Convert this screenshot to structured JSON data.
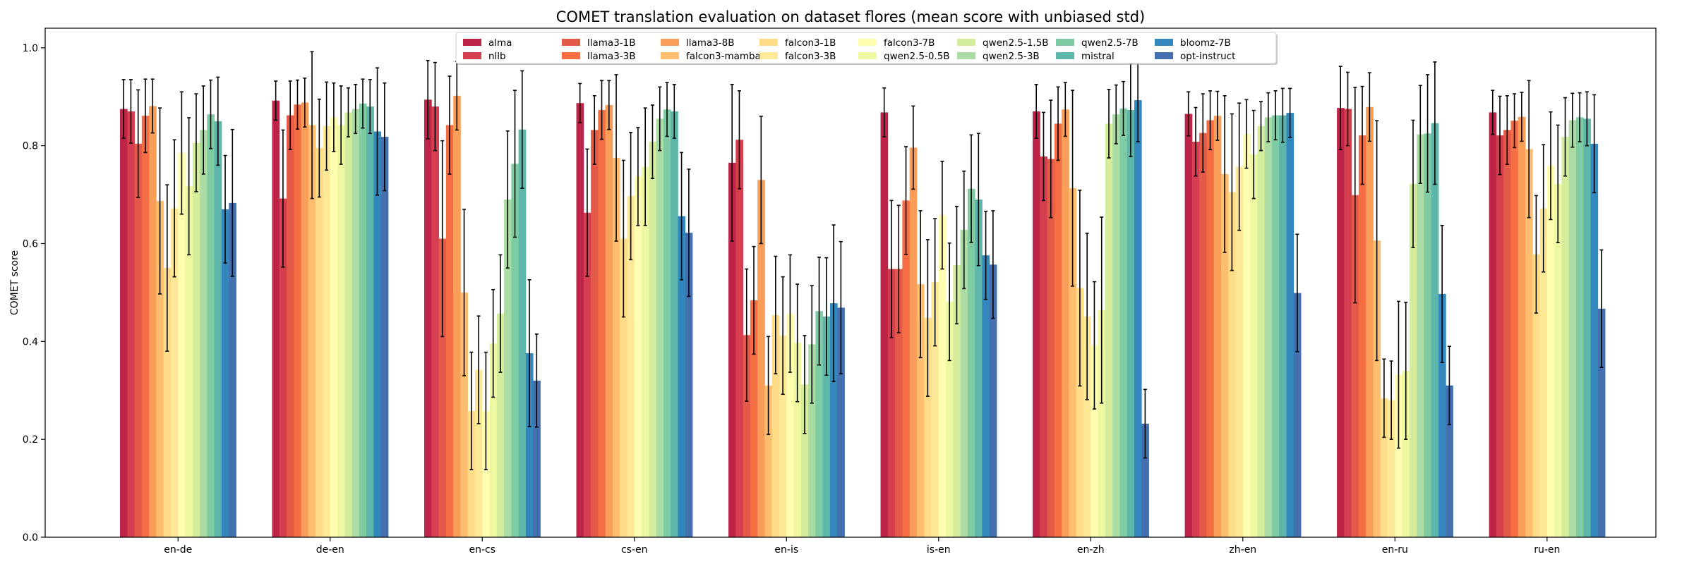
{
  "chart_data": {
    "type": "bar",
    "title": "COMET translation evaluation on dataset flores (mean score with unbiased std)",
    "xlabel": "",
    "ylabel": "COMET score",
    "ylim": [
      0,
      1.04
    ],
    "yticks": [
      "0.0",
      "0.2",
      "0.4",
      "0.6",
      "0.8",
      "1.0"
    ],
    "grid": false,
    "legend": {
      "placement": "top-center",
      "columns": 8
    },
    "error_bars": true,
    "categories": [
      "en-de",
      "de-en",
      "en-cs",
      "cs-en",
      "en-is",
      "is-en",
      "en-zh",
      "zh-en",
      "en-ru",
      "ru-en"
    ],
    "series": [
      {
        "name": "alma",
        "color": "#be2447",
        "values": [
          0.875,
          0.892,
          0.894,
          0.887,
          0.765,
          0.868,
          0.87,
          0.865,
          0.877,
          0.868
        ],
        "std": [
          0.06,
          0.04,
          0.08,
          0.04,
          0.16,
          0.05,
          0.055,
          0.045,
          0.085,
          0.045
        ]
      },
      {
        "name": "nllb",
        "color": "#d53e4f",
        "values": [
          0.87,
          0.692,
          0.88,
          0.663,
          0.812,
          0.548,
          0.778,
          0.808,
          0.875,
          0.821
        ],
        "std": [
          0.065,
          0.14,
          0.09,
          0.13,
          0.1,
          0.14,
          0.09,
          0.07,
          0.075,
          0.08
        ]
      },
      {
        "name": "llama3-1B",
        "color": "#e45a49",
        "values": [
          0.804,
          0.862,
          0.61,
          0.832,
          0.413,
          0.548,
          0.773,
          0.826,
          0.699,
          0.832
        ],
        "std": [
          0.11,
          0.07,
          0.2,
          0.07,
          0.135,
          0.13,
          0.12,
          0.08,
          0.22,
          0.07
        ]
      },
      {
        "name": "llama3-3B",
        "color": "#f46d43",
        "values": [
          0.861,
          0.884,
          0.842,
          0.873,
          0.484,
          0.688,
          0.845,
          0.852,
          0.821,
          0.851
        ],
        "std": [
          0.075,
          0.05,
          0.1,
          0.06,
          0.11,
          0.11,
          0.075,
          0.06,
          0.1,
          0.055
        ]
      },
      {
        "name": "llama3-8B",
        "color": "#f99e59",
        "values": [
          0.881,
          0.888,
          0.902,
          0.883,
          0.73,
          0.796,
          0.874,
          0.861,
          0.879,
          0.859
        ],
        "std": [
          0.055,
          0.05,
          0.07,
          0.05,
          0.13,
          0.085,
          0.055,
          0.05,
          0.07,
          0.05
        ]
      },
      {
        "name": "falcon3-mamba",
        "color": "#fdbf6f",
        "values": [
          0.687,
          0.842,
          0.5,
          0.775,
          0.31,
          0.517,
          0.713,
          0.742,
          0.606,
          0.793
        ],
        "std": [
          0.19,
          0.15,
          0.17,
          0.17,
          0.1,
          0.15,
          0.2,
          0.16,
          0.245,
          0.14
        ]
      },
      {
        "name": "falcon3-1B",
        "color": "#fedc88",
        "values": [
          0.55,
          0.795,
          0.258,
          0.61,
          0.454,
          0.448,
          0.509,
          0.705,
          0.284,
          0.578
        ],
        "std": [
          0.17,
          0.1,
          0.12,
          0.16,
          0.12,
          0.16,
          0.2,
          0.16,
          0.08,
          0.12
        ]
      },
      {
        "name": "falcon3-3B",
        "color": "#fee999",
        "values": [
          0.672,
          0.84,
          0.342,
          0.697,
          0.412,
          0.521,
          0.451,
          0.757,
          0.28,
          0.672
        ],
        "std": [
          0.14,
          0.09,
          0.11,
          0.13,
          0.12,
          0.13,
          0.17,
          0.13,
          0.08,
          0.13
        ]
      },
      {
        "name": "falcon3-7B",
        "color": "#fefdb0",
        "values": [
          0.785,
          0.858,
          0.258,
          0.737,
          0.457,
          0.658,
          0.392,
          0.824,
          0.332,
          0.759
        ],
        "std": [
          0.125,
          0.07,
          0.12,
          0.1,
          0.12,
          0.11,
          0.13,
          0.07,
          0.15,
          0.11
        ]
      },
      {
        "name": "qwen2.5-0.5B",
        "color": "#eef8a0",
        "values": [
          0.717,
          0.842,
          0.396,
          0.757,
          0.397,
          0.481,
          0.464,
          0.782,
          0.34,
          0.722
        ],
        "std": [
          0.14,
          0.08,
          0.11,
          0.12,
          0.12,
          0.12,
          0.19,
          0.09,
          0.14,
          0.12
        ]
      },
      {
        "name": "qwen2.5-1.5B",
        "color": "#d4ed9c",
        "values": [
          0.806,
          0.868,
          0.457,
          0.808,
          0.312,
          0.556,
          0.845,
          0.84,
          0.722,
          0.818
        ],
        "std": [
          0.1,
          0.05,
          0.12,
          0.075,
          0.1,
          0.12,
          0.07,
          0.05,
          0.13,
          0.08
        ]
      },
      {
        "name": "qwen2.5-3B",
        "color": "#aadca4",
        "values": [
          0.832,
          0.875,
          0.69,
          0.855,
          0.394,
          0.628,
          0.864,
          0.858,
          0.823,
          0.852
        ],
        "std": [
          0.09,
          0.05,
          0.14,
          0.065,
          0.12,
          0.12,
          0.06,
          0.05,
          0.1,
          0.055
        ]
      },
      {
        "name": "qwen2.5-7B",
        "color": "#7fcba4",
        "values": [
          0.864,
          0.886,
          0.763,
          0.874,
          0.462,
          0.712,
          0.876,
          0.862,
          0.825,
          0.858
        ],
        "std": [
          0.07,
          0.05,
          0.15,
          0.055,
          0.11,
          0.11,
          0.055,
          0.05,
          0.12,
          0.05
        ]
      },
      {
        "name": "mistral",
        "color": "#5eb5a9",
        "values": [
          0.85,
          0.88,
          0.833,
          0.87,
          0.451,
          0.69,
          0.873,
          0.862,
          0.846,
          0.855
        ],
        "std": [
          0.09,
          0.055,
          0.12,
          0.055,
          0.12,
          0.135,
          0.095,
          0.055,
          0.125,
          0.055
        ]
      },
      {
        "name": "bloomz-7B",
        "color": "#3288bd",
        "values": [
          0.67,
          0.829,
          0.376,
          0.656,
          0.478,
          0.576,
          0.893,
          0.867,
          0.497,
          0.804
        ],
        "std": [
          0.11,
          0.13,
          0.15,
          0.13,
          0.16,
          0.09,
          0.085,
          0.05,
          0.14,
          0.1
        ]
      },
      {
        "name": "opt-instruct",
        "color": "#4470b0",
        "values": [
          0.683,
          0.818,
          0.32,
          0.622,
          0.469,
          0.557,
          0.232,
          0.499,
          0.31,
          0.467
        ],
        "std": [
          0.15,
          0.11,
          0.095,
          0.13,
          0.135,
          0.11,
          0.07,
          0.12,
          0.08,
          0.12
        ]
      }
    ]
  }
}
